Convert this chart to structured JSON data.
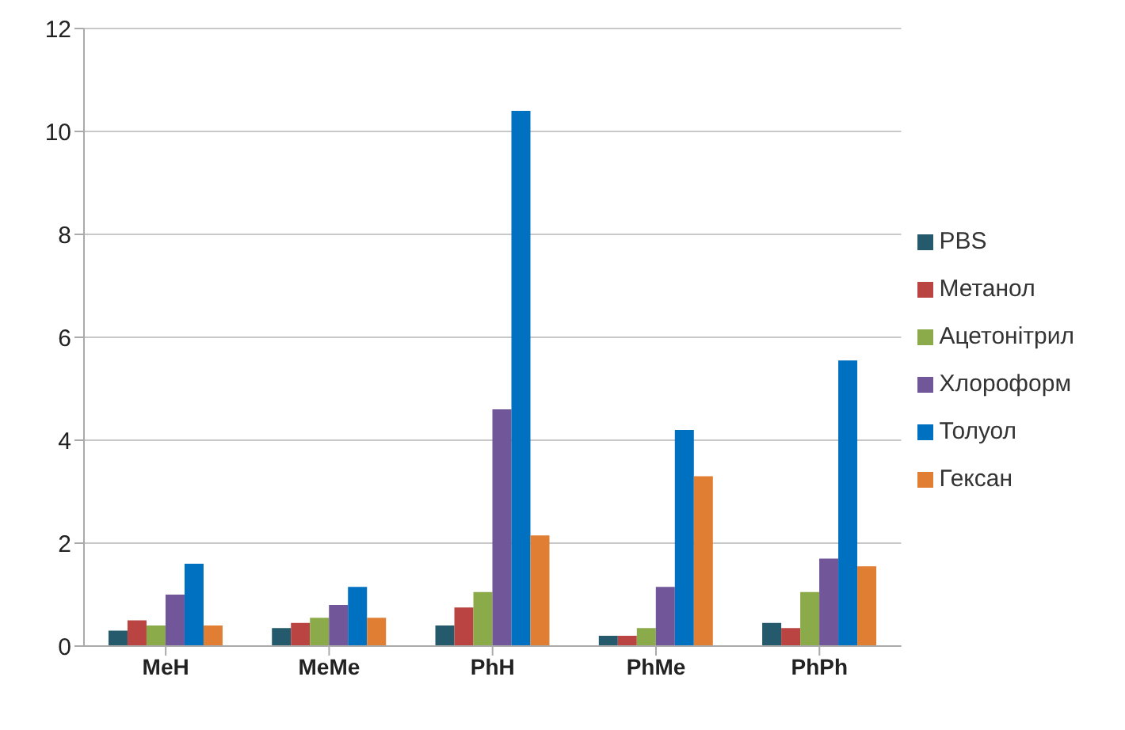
{
  "chart_data": {
    "type": "bar",
    "categories": [
      "MeH",
      "MeMe",
      "PhH",
      "PhMe",
      "PhPh"
    ],
    "series": [
      {
        "name": "PBS",
        "color": "#245a6c",
        "values": [
          0.3,
          0.35,
          0.4,
          0.2,
          0.45
        ]
      },
      {
        "name": "Метанол",
        "color": "#b94442",
        "values": [
          0.5,
          0.45,
          0.75,
          0.2,
          0.35
        ]
      },
      {
        "name": "Ацетонітрил",
        "color": "#8bab4a",
        "values": [
          0.4,
          0.55,
          1.05,
          0.35,
          1.05
        ]
      },
      {
        "name": "Хлороформ",
        "color": "#71569a",
        "values": [
          1.0,
          0.8,
          4.6,
          1.15,
          1.7
        ]
      },
      {
        "name": "Толуол",
        "color": "#0070c0",
        "values": [
          1.6,
          1.15,
          10.4,
          4.2,
          5.55
        ]
      },
      {
        "name": "Гексан",
        "color": "#e07f34",
        "values": [
          0.4,
          0.55,
          2.15,
          3.3,
          1.55
        ]
      }
    ],
    "ylim": [
      0,
      12
    ],
    "yticks": [
      0,
      2,
      4,
      6,
      8,
      10,
      12
    ],
    "grid": "y",
    "legend": "right"
  }
}
